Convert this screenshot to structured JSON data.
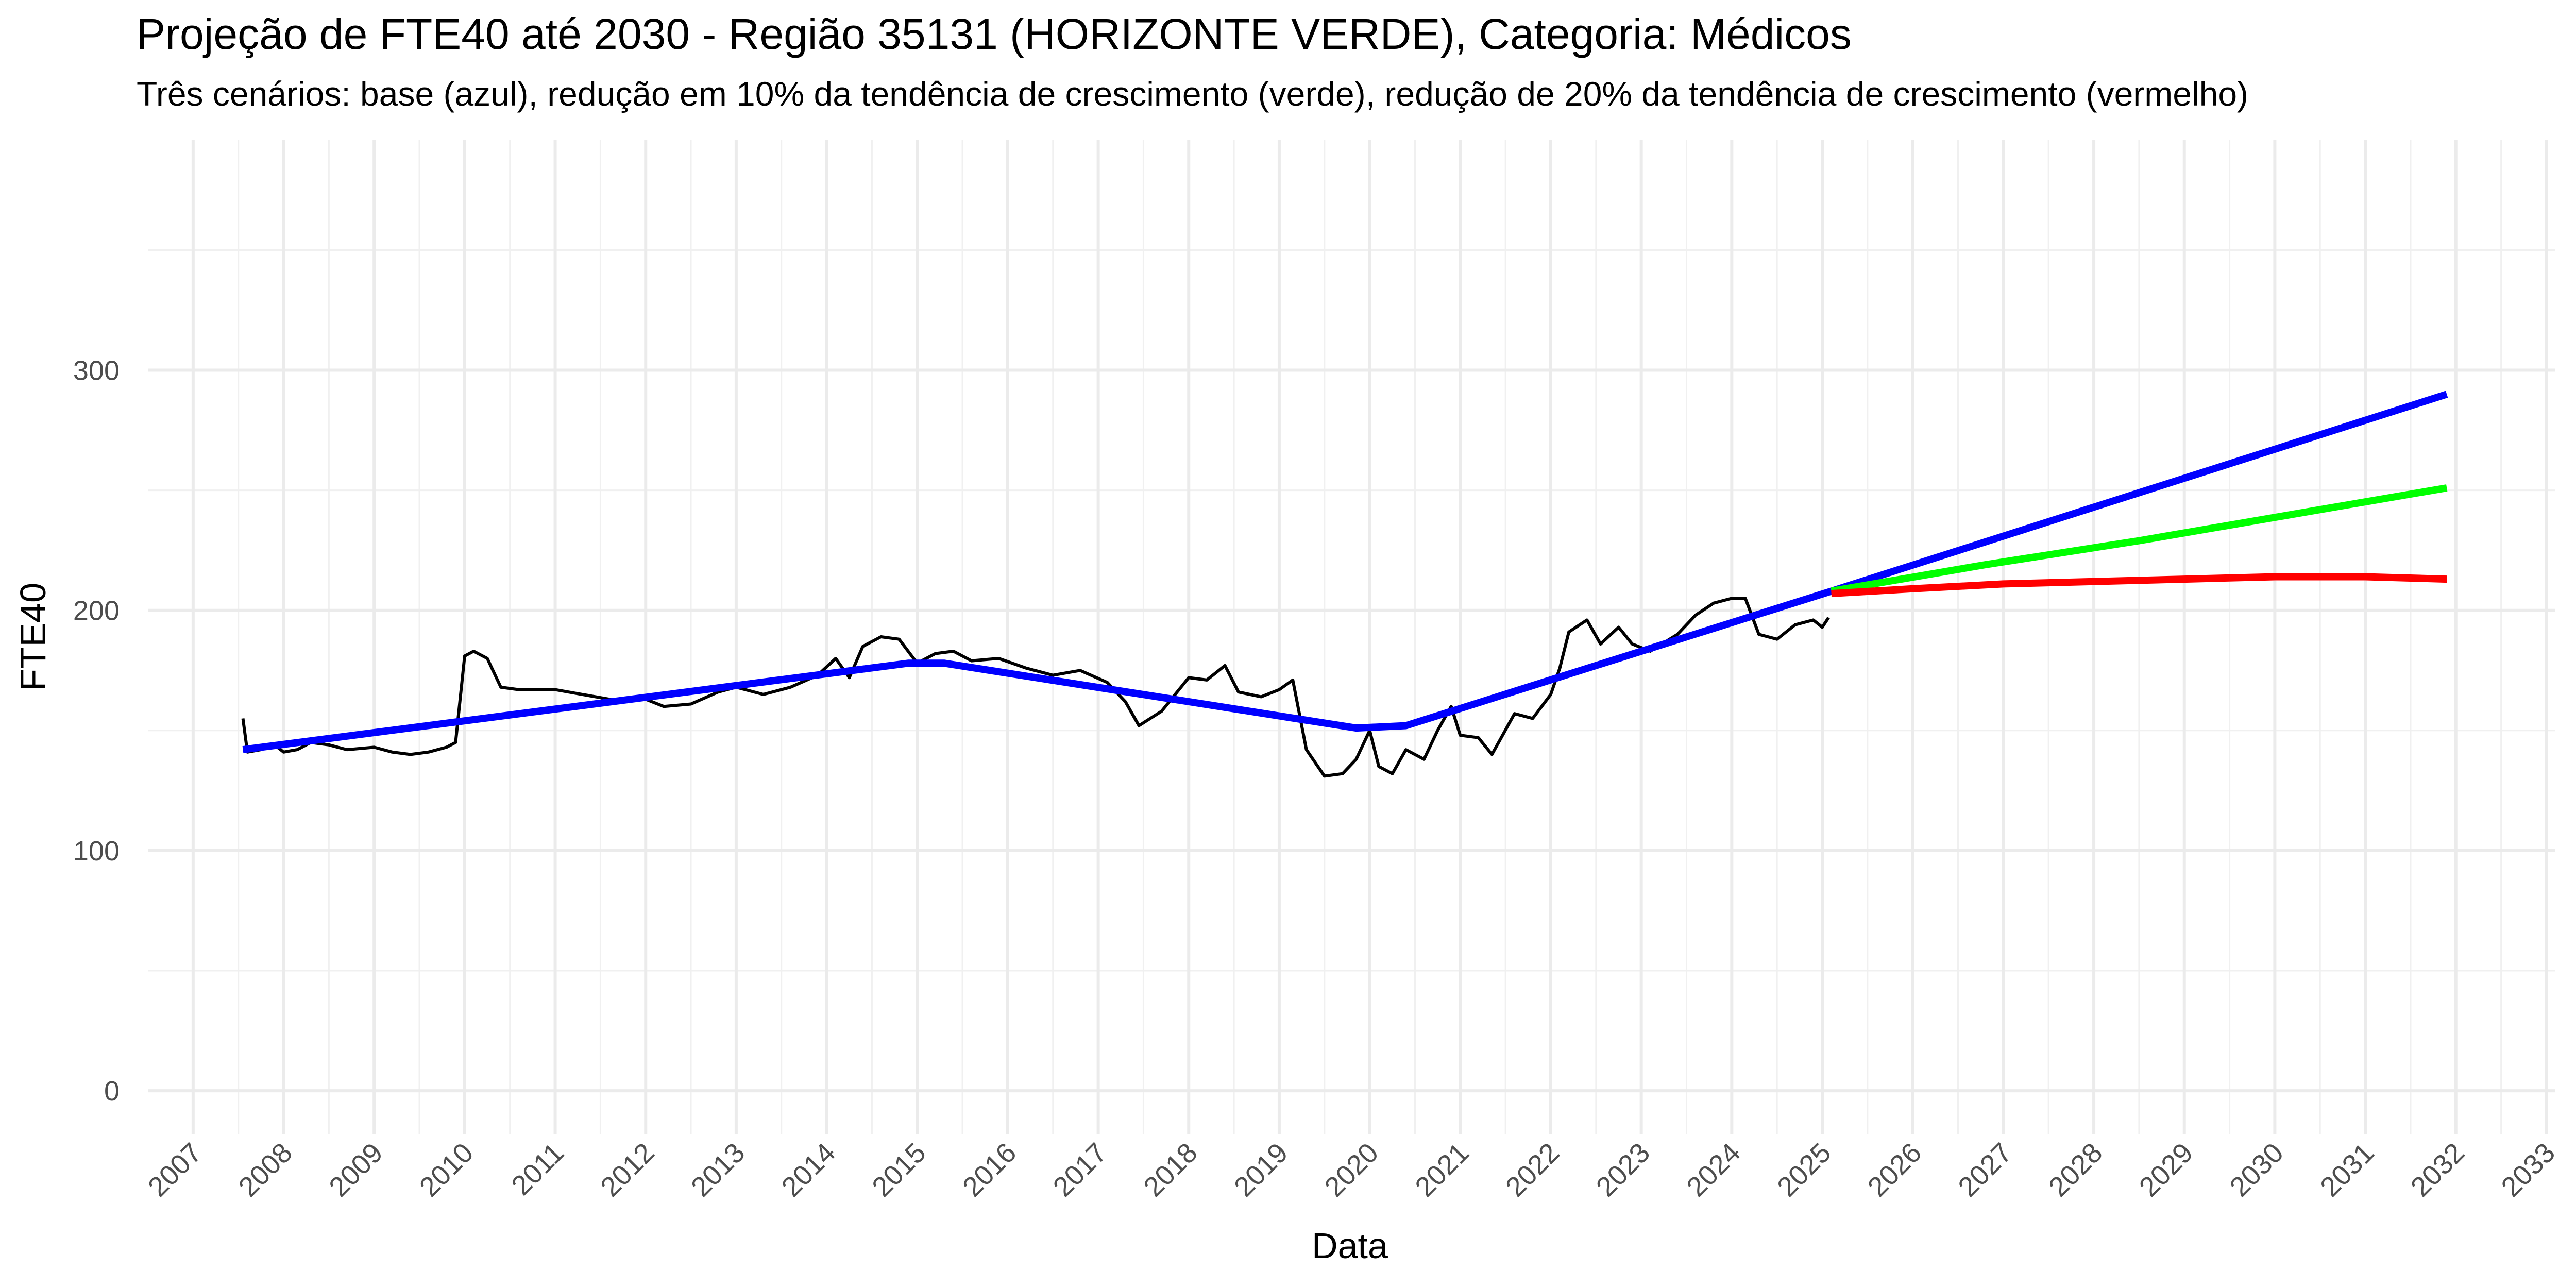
{
  "chart_data": {
    "type": "line",
    "title": "Projeção de FTE40 até 2030 - Região 35131 (HORIZONTE VERDE), Categoria: Médicos",
    "subtitle": "Três cenários: base (azul), redução em 10% da tendência de crescimento (verde), redução de 20% da tendência de crescimento (vermelho)",
    "x_label": "Data",
    "y_label": "FTE40",
    "xlim": [
      2006.5,
      2033.1
    ],
    "ylim": [
      -18,
      396
    ],
    "xticks": [
      2007,
      2008,
      2009,
      2010,
      2011,
      2012,
      2013,
      2014,
      2015,
      2016,
      2017,
      2018,
      2019,
      2020,
      2021,
      2022,
      2023,
      2024,
      2025,
      2026,
      2027,
      2028,
      2029,
      2030,
      2031,
      2032,
      2033
    ],
    "yticks": [
      0,
      100,
      200,
      300
    ],
    "grid": true,
    "series": [
      {
        "color": "#000000",
        "width": "thin",
        "x": [
          2007.55,
          2007.6,
          2007.75,
          2007.9,
          2008.0,
          2008.15,
          2008.3,
          2008.5,
          2008.7,
          2009.0,
          2009.2,
          2009.4,
          2009.6,
          2009.8,
          2009.9,
          2010.0,
          2010.1,
          2010.25,
          2010.4,
          2010.6,
          2011.0,
          2011.3,
          2011.6,
          2012.0,
          2012.2,
          2012.5,
          2012.8,
          2013.0,
          2013.3,
          2013.6,
          2013.9,
          2014.1,
          2014.25,
          2014.4,
          2014.6,
          2014.8,
          2015.0,
          2015.2,
          2015.4,
          2015.6,
          2015.9,
          2016.2,
          2016.5,
          2016.8,
          2017.1,
          2017.3,
          2017.45,
          2017.7,
          2018.0,
          2018.2,
          2018.4,
          2018.55,
          2018.8,
          2019.0,
          2019.15,
          2019.3,
          2019.5,
          2019.7,
          2019.85,
          2020.0,
          2020.1,
          2020.25,
          2020.4,
          2020.6,
          2020.75,
          2020.9,
          2021.0,
          2021.2,
          2021.35,
          2021.6,
          2021.8,
          2022.0,
          2022.1,
          2022.2,
          2022.4,
          2022.55,
          2022.75,
          2022.9,
          2023.1,
          2023.4,
          2023.6,
          2023.8,
          2024.0,
          2024.15,
          2024.3,
          2024.5,
          2024.7,
          2024.9,
          2025.0,
          2025.07
        ],
        "values": [
          155,
          141,
          142,
          144,
          141,
          142,
          145,
          144,
          142,
          143,
          141,
          140,
          141,
          143,
          145,
          181,
          183,
          180,
          168,
          167,
          167,
          165,
          163,
          163,
          160,
          161,
          166,
          168,
          165,
          168,
          173,
          180,
          172,
          185,
          189,
          188,
          178,
          182,
          183,
          179,
          180,
          176,
          173,
          175,
          170,
          162,
          152,
          158,
          172,
          171,
          177,
          166,
          164,
          167,
          171,
          142,
          131,
          132,
          138,
          150,
          135,
          132,
          142,
          138,
          150,
          160,
          148,
          147,
          140,
          157,
          155,
          165,
          176,
          191,
          196,
          186,
          193,
          186,
          183,
          190,
          198,
          203,
          205,
          205,
          190,
          188,
          194,
          196,
          193,
          197
        ]
      },
      {
        "color": "#0000ff",
        "width": "thick",
        "x": [
          2007.55,
          2014.9,
          2015.3,
          2019.85,
          2020.4,
          2025.1,
          2031.9
        ],
        "values": [
          142,
          178,
          178,
          151,
          152,
          208,
          290
        ]
      },
      {
        "color": "#00ff00",
        "width": "thick",
        "x": [
          2025.1,
          2026.8,
          2028.5,
          2030.2,
          2031.9
        ],
        "values": [
          208,
          219,
          229,
          240,
          251
        ]
      },
      {
        "color": "#ff0000",
        "width": "thick",
        "x": [
          2025.1,
          2026,
          2027,
          2028,
          2029,
          2030,
          2031,
          2031.9
        ],
        "values": [
          207,
          209,
          211,
          212,
          213,
          214,
          214,
          213
        ]
      }
    ]
  }
}
